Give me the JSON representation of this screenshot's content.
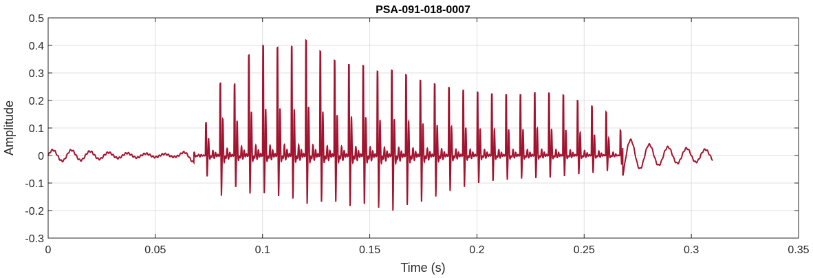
{
  "chart_data": {
    "type": "line",
    "title": "PSA-091-018-0007",
    "xlabel": "Time (s)",
    "ylabel": "Amplitude",
    "xlim": [
      0,
      0.35
    ],
    "ylim": [
      -0.3,
      0.5
    ],
    "xticks": [
      0,
      0.05,
      0.1,
      0.15,
      0.2,
      0.25,
      0.3,
      0.35
    ],
    "xtick_labels": [
      "0",
      "0.05",
      "0.1",
      "0.15",
      "0.2",
      "0.25",
      "0.3",
      "0.35"
    ],
    "yticks": [
      -0.3,
      -0.2,
      -0.1,
      0,
      0.1,
      0.2,
      0.3,
      0.4,
      0.5
    ],
    "ytick_labels": [
      "-0.3",
      "-0.2",
      "-0.1",
      "0",
      "0.1",
      "0.2",
      "0.3",
      "0.4",
      "0.5"
    ],
    "grid": true,
    "line_color": "#A2142F",
    "series": [
      {
        "x": [
          0,
          0.01,
          0.02,
          0.03,
          0.04,
          0.05,
          0.06,
          0.067,
          0.07,
          0.075,
          0.08,
          0.082,
          0.085,
          0.09,
          0.095,
          0.1,
          0.105,
          0.11,
          0.115,
          0.12,
          0.125,
          0.13,
          0.135,
          0.14,
          0.145,
          0.15,
          0.155,
          0.16,
          0.165,
          0.17,
          0.175,
          0.18,
          0.19,
          0.2,
          0.21,
          0.22,
          0.23,
          0.24,
          0.25,
          0.26,
          0.265,
          0.27,
          0.28,
          0.29,
          0.3,
          0.31
        ],
        "peaks": [
          0.02,
          0.02,
          0.015,
          0.01,
          0.008,
          0.006,
          0.005,
          0.02,
          0.04,
          0.15,
          0.25,
          0.33,
          0.2,
          0.35,
          0.37,
          0.4,
          0.38,
          0.41,
          0.39,
          0.42,
          0.39,
          0.36,
          0.34,
          0.33,
          0.33,
          0.32,
          0.3,
          0.31,
          0.3,
          0.28,
          0.27,
          0.26,
          0.24,
          0.23,
          0.22,
          0.22,
          0.23,
          0.22,
          0.19,
          0.16,
          0.11,
          0.06,
          0.04,
          0.03,
          0.025,
          0.02
        ],
        "troughs": [
          -0.02,
          -0.015,
          -0.012,
          -0.01,
          -0.008,
          -0.006,
          -0.005,
          -0.02,
          -0.05,
          -0.1,
          -0.15,
          -0.21,
          -0.13,
          -0.15,
          -0.17,
          -0.16,
          -0.18,
          -0.18,
          -0.19,
          -0.21,
          -0.2,
          -0.21,
          -0.2,
          -0.22,
          -0.21,
          -0.22,
          -0.23,
          -0.24,
          -0.23,
          -0.21,
          -0.2,
          -0.18,
          -0.15,
          -0.12,
          -0.11,
          -0.1,
          -0.1,
          -0.09,
          -0.08,
          -0.07,
          -0.05,
          -0.03,
          -0.02,
          -0.02,
          -0.015,
          -0.01
        ]
      }
    ]
  }
}
